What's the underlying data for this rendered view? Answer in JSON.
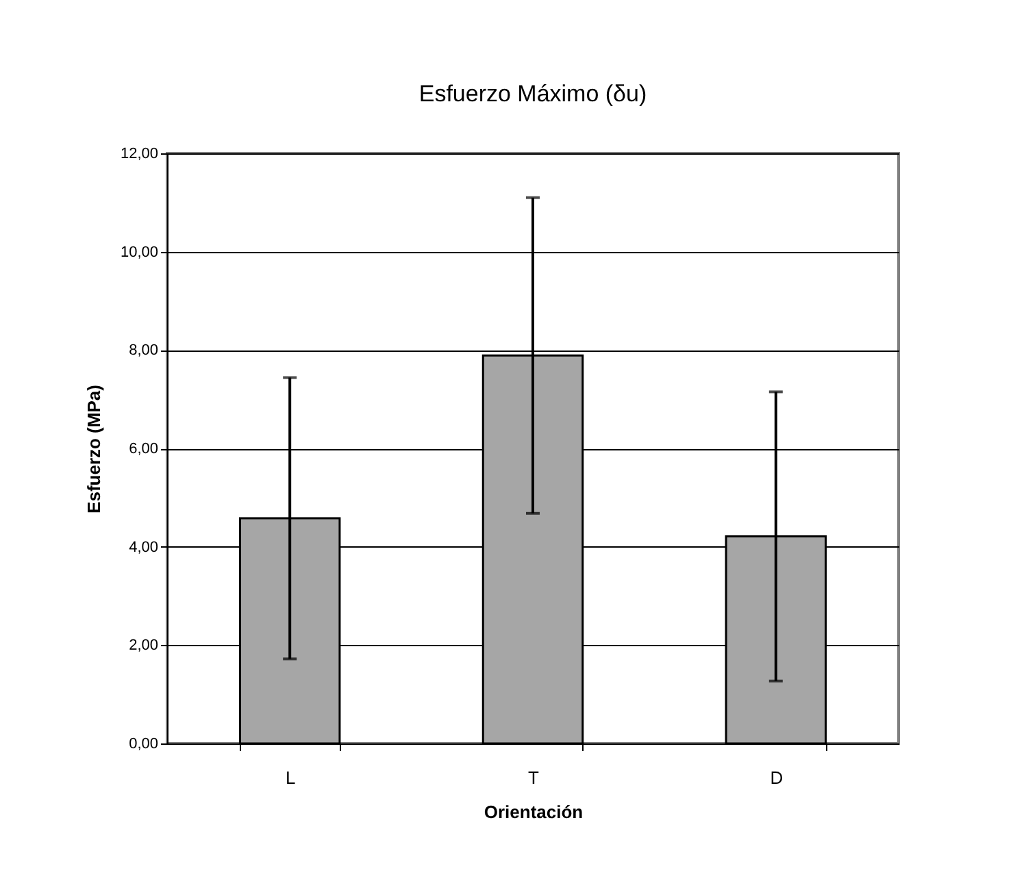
{
  "chart_data": {
    "type": "bar",
    "title": "Esfuerzo Máximo (δu)",
    "xlabel": "Orientación",
    "ylabel": "Esfuerzo (MPa)",
    "categories": [
      "L",
      "T",
      "D"
    ],
    "series": [
      {
        "color": "#a6a6a6",
        "values": [
          4.58,
          7.89,
          4.21
        ],
        "errors": [
          2.86,
          3.21,
          2.94
        ]
      }
    ],
    "ylim": [
      0,
      12
    ],
    "yticks": [
      {
        "value": 0,
        "label": "0,00"
      },
      {
        "value": 2,
        "label": "2,00"
      },
      {
        "value": 4,
        "label": "4,00"
      },
      {
        "value": 6,
        "label": "6,00"
      },
      {
        "value": 8,
        "label": "8,00"
      },
      {
        "value": 10,
        "label": "10,00"
      },
      {
        "value": 12,
        "label": "12,00"
      }
    ],
    "grid": "y"
  }
}
